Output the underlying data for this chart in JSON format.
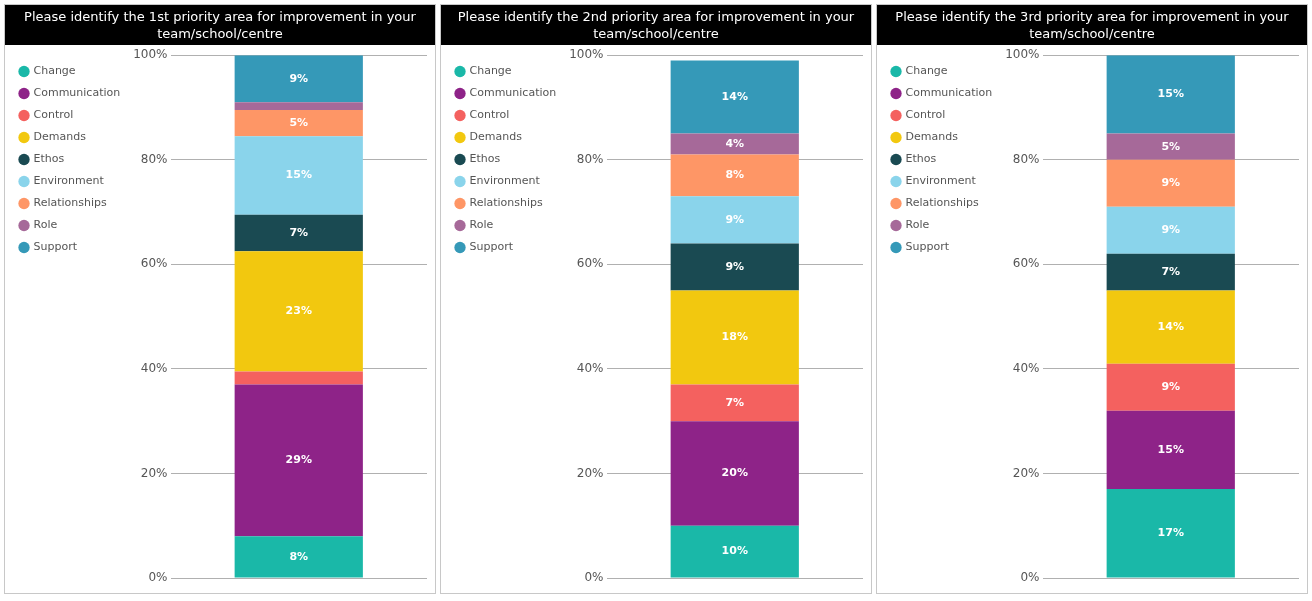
{
  "chart_data": [
    {
      "type": "bar",
      "title": "Please identify the 1st priority area for improvement in your team/school/centre",
      "categories": [
        null
      ],
      "stacked": true,
      "legend": "left",
      "grid": "y",
      "tick_labels": "y",
      "ylim": [
        0,
        100
      ],
      "yticks": [
        {
          "value": 0,
          "label": "0%"
        },
        {
          "value": 20,
          "label": "20%"
        },
        {
          "value": 40,
          "label": "40%"
        },
        {
          "value": 60,
          "label": "60%"
        },
        {
          "value": 80,
          "label": "80%"
        },
        {
          "value": 100,
          "label": "100%"
        }
      ],
      "series": [
        {
          "name": "Change",
          "color": "#1ab8a8",
          "values": [
            8
          ],
          "value_labels": [
            "8%"
          ]
        },
        {
          "name": "Communication",
          "color": "#8e2388",
          "values": [
            29
          ],
          "value_labels": [
            "29%"
          ]
        },
        {
          "name": "Control",
          "color": "#f4615f",
          "values": [
            2.5
          ],
          "value_labels": [
            null
          ]
        },
        {
          "name": "Demands",
          "color": "#f2c80f",
          "values": [
            23
          ],
          "value_labels": [
            "23%"
          ]
        },
        {
          "name": "Ethos",
          "color": "#1a4a52",
          "values": [
            7
          ],
          "value_labels": [
            "7%"
          ]
        },
        {
          "name": "Environment",
          "color": "#8ad4eb",
          "values": [
            15
          ],
          "value_labels": [
            "15%"
          ]
        },
        {
          "name": "Relationships",
          "color": "#fe9666",
          "values": [
            5
          ],
          "value_labels": [
            "5%"
          ]
        },
        {
          "name": "Role",
          "color": "#a66999",
          "values": [
            1.5
          ],
          "value_labels": [
            null
          ]
        },
        {
          "name": "Support",
          "color": "#3599b8",
          "values": [
            9
          ],
          "value_labels": [
            "9%"
          ]
        }
      ]
    },
    {
      "type": "bar",
      "title": "Please identify the 2nd priority area for improvement in your team/school/centre",
      "categories": [
        null
      ],
      "stacked": true,
      "legend": "left",
      "grid": "y",
      "tick_labels": "y",
      "ylim": [
        0,
        100
      ],
      "yticks": [
        {
          "value": 0,
          "label": "0%"
        },
        {
          "value": 20,
          "label": "20%"
        },
        {
          "value": 40,
          "label": "40%"
        },
        {
          "value": 60,
          "label": "60%"
        },
        {
          "value": 80,
          "label": "80%"
        },
        {
          "value": 100,
          "label": "100%"
        }
      ],
      "series": [
        {
          "name": "Change",
          "color": "#1ab8a8",
          "values": [
            10
          ],
          "value_labels": [
            "10%"
          ]
        },
        {
          "name": "Communication",
          "color": "#8e2388",
          "values": [
            20
          ],
          "value_labels": [
            "20%"
          ]
        },
        {
          "name": "Control",
          "color": "#f4615f",
          "values": [
            7
          ],
          "value_labels": [
            "7%"
          ]
        },
        {
          "name": "Demands",
          "color": "#f2c80f",
          "values": [
            18
          ],
          "value_labels": [
            "18%"
          ]
        },
        {
          "name": "Ethos",
          "color": "#1a4a52",
          "values": [
            9
          ],
          "value_labels": [
            "9%"
          ]
        },
        {
          "name": "Environment",
          "color": "#8ad4eb",
          "values": [
            9
          ],
          "value_labels": [
            "9%"
          ]
        },
        {
          "name": "Relationships",
          "color": "#fe9666",
          "values": [
            8
          ],
          "value_labels": [
            "8%"
          ]
        },
        {
          "name": "Role",
          "color": "#a66999",
          "values": [
            4
          ],
          "value_labels": [
            "4%"
          ]
        },
        {
          "name": "Support",
          "color": "#3599b8",
          "values": [
            14
          ],
          "value_labels": [
            "14%"
          ]
        }
      ]
    },
    {
      "type": "bar",
      "title": "Please identify the 3rd priority area for improvement in your team/school/centre",
      "categories": [
        null
      ],
      "stacked": true,
      "legend": "left",
      "grid": "y",
      "tick_labels": "y",
      "ylim": [
        0,
        100
      ],
      "yticks": [
        {
          "value": 0,
          "label": "0%"
        },
        {
          "value": 20,
          "label": "20%"
        },
        {
          "value": 40,
          "label": "40%"
        },
        {
          "value": 60,
          "label": "60%"
        },
        {
          "value": 80,
          "label": "80%"
        },
        {
          "value": 100,
          "label": "100%"
        }
      ],
      "series": [
        {
          "name": "Change",
          "color": "#1ab8a8",
          "values": [
            17
          ],
          "value_labels": [
            "17%"
          ]
        },
        {
          "name": "Communication",
          "color": "#8e2388",
          "values": [
            15
          ],
          "value_labels": [
            "15%"
          ]
        },
        {
          "name": "Control",
          "color": "#f4615f",
          "values": [
            9
          ],
          "value_labels": [
            "9%"
          ]
        },
        {
          "name": "Demands",
          "color": "#f2c80f",
          "values": [
            14
          ],
          "value_labels": [
            "14%"
          ]
        },
        {
          "name": "Ethos",
          "color": "#1a4a52",
          "values": [
            7
          ],
          "value_labels": [
            "7%"
          ]
        },
        {
          "name": "Environment",
          "color": "#8ad4eb",
          "values": [
            9
          ],
          "value_labels": [
            "9%"
          ]
        },
        {
          "name": "Relationships",
          "color": "#fe9666",
          "values": [
            9
          ],
          "value_labels": [
            "9%"
          ]
        },
        {
          "name": "Role",
          "color": "#a66999",
          "values": [
            5
          ],
          "value_labels": [
            "5%"
          ]
        },
        {
          "name": "Support",
          "color": "#3599b8",
          "values": [
            15
          ],
          "value_labels": [
            "15%"
          ]
        }
      ]
    }
  ]
}
